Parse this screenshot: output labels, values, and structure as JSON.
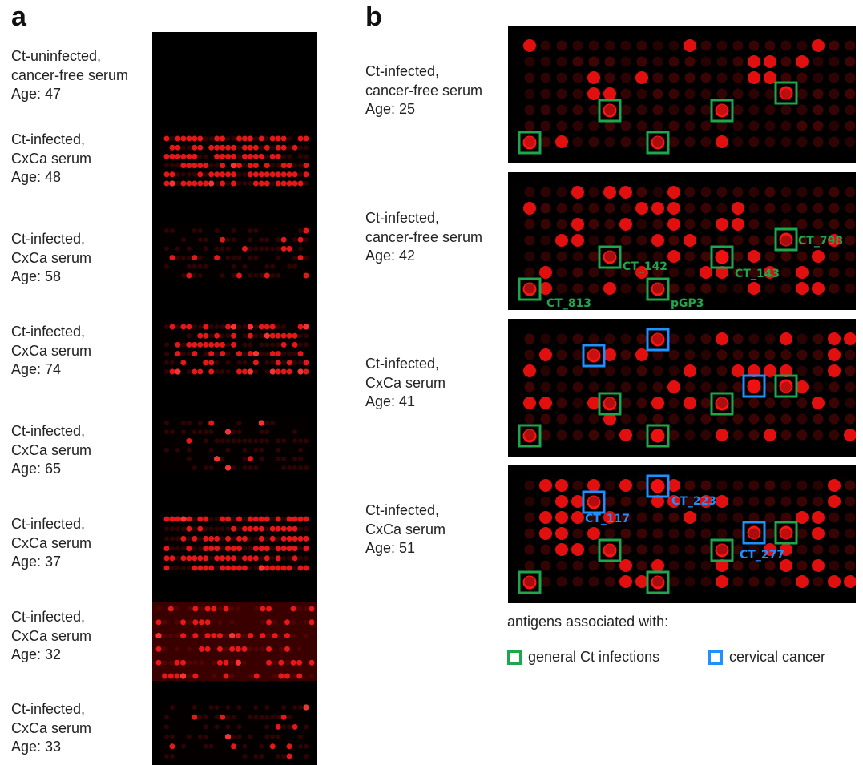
{
  "panel_a": {
    "letter": "a",
    "samples": [
      {
        "line1": "Ct-uninfected,",
        "line2": "cancer-free serum",
        "line3": "Age: 47"
      },
      {
        "line1": "Ct-infected,",
        "line2": "CxCa serum",
        "line3": "Age: 48"
      },
      {
        "line1": "Ct-infected,",
        "line2": "CxCa serum",
        "line3": "Age: 58"
      },
      {
        "line1": "Ct-infected,",
        "line2": "CxCa serum",
        "line3": "Age: 74"
      },
      {
        "line1": "Ct-infected,",
        "line2": "CxCa serum",
        "line3": "Age: 65"
      },
      {
        "line1": "Ct-infected,",
        "line2": "CxCa serum",
        "line3": "Age: 37"
      },
      {
        "line1": "Ct-infected,",
        "line2": "CxCa serum",
        "line3": "Age: 32"
      },
      {
        "line1": "Ct-infected,",
        "line2": "CxCa serum",
        "line3": "Age: 33"
      }
    ]
  },
  "panel_b": {
    "letter": "b",
    "samples": [
      {
        "line1": "Ct-infected,",
        "line2": "cancer-free serum",
        "line3": "Age: 25"
      },
      {
        "line1": "Ct-infected,",
        "line2": "cancer-free serum",
        "line3": "Age: 42"
      },
      {
        "line1": "Ct-infected,",
        "line2": "CxCa serum",
        "line3": "Age: 41"
      },
      {
        "line1": "Ct-infected,",
        "line2": "CxCa serum",
        "line3": "Age: 51"
      }
    ],
    "antigen_labels": {
      "ct_798": "CT_798",
      "ct_142": "CT_142",
      "ct_143": "CT_143",
      "ct_813": "CT_813",
      "pgp3": "pGP3",
      "ct_223": "CT_223",
      "ct_117": "CT_117",
      "ct_277": "CT_277"
    }
  },
  "legend": {
    "title": "antigens associated with:",
    "general": "general Ct infections",
    "cancer": "cervical cancer"
  },
  "colors": {
    "green_box": "#1fa64a",
    "blue_box": "#1e90ff",
    "spot": "#e01818"
  }
}
